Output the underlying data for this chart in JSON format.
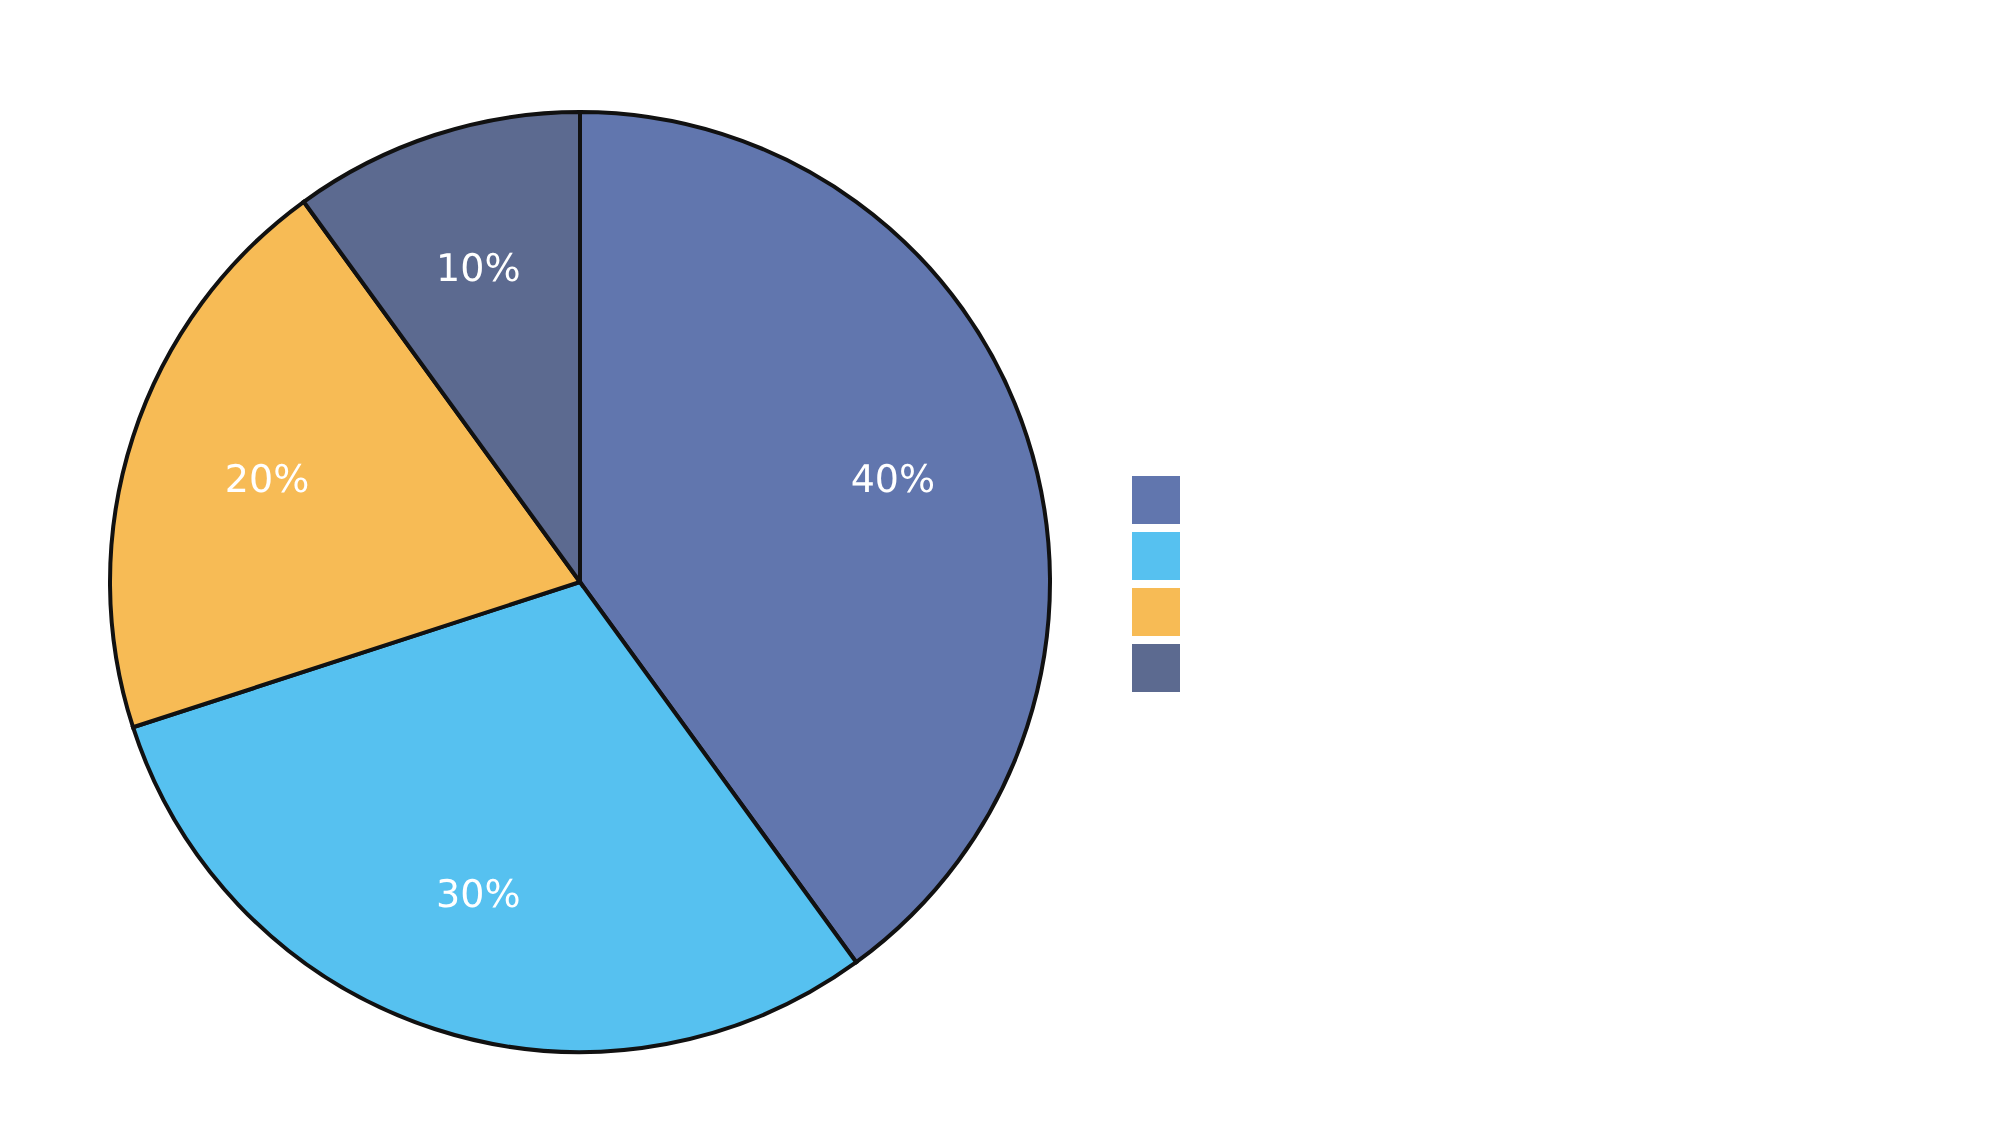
{
  "chart_data": {
    "type": "pie",
    "categories": [
      null,
      null,
      null,
      null
    ],
    "values": [
      40,
      30,
      20,
      10
    ],
    "value_labels": [
      "40%",
      "30%",
      "20%",
      "10%"
    ],
    "colors": [
      "#6176ae",
      "#56c1f0",
      "#f7bb55",
      "#5c6a90"
    ]
  }
}
